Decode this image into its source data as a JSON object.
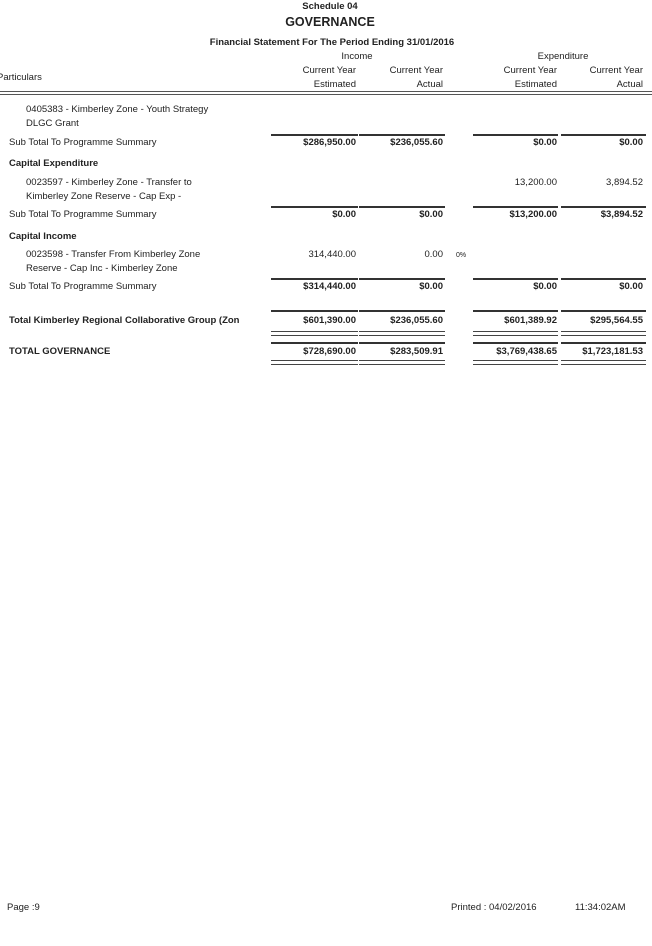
{
  "header": {
    "schedule": "Schedule 04",
    "title": "GOVERNANCE",
    "subtitle": "Financial Statement For The Period Ending 31/01/2016",
    "income": "Income",
    "expenditure": "Expenditure",
    "particulars": "Particulars",
    "cols": [
      [
        "Current Year",
        "Estimated"
      ],
      [
        "Current Year",
        "Actual"
      ],
      [
        "Current Year",
        "Estimated"
      ],
      [
        "Current Year",
        "Actual"
      ]
    ]
  },
  "rows": {
    "item1": {
      "lines": [
        "0405383 - Kimberley Zone - Youth Strategy",
        "DLGC Grant"
      ]
    },
    "sub1": {
      "label": "Sub Total To Programme Summary",
      "values": [
        "$286,950.00",
        "$236,055.60",
        "$0.00",
        "$0.00"
      ]
    },
    "sec2": "Capital Expenditure",
    "item2": {
      "lines": [
        "0023597 - Kimberley Zone - Transfer to",
        "Kimberley Zone Reserve -  Cap Exp -"
      ],
      "values": [
        "13,200.00",
        "3,894.52"
      ]
    },
    "sub2": {
      "label": "Sub Total To Programme Summary",
      "values": [
        "$0.00",
        "$0.00",
        "$13,200.00",
        "$3,894.52"
      ]
    },
    "sec3": "Capital Income",
    "item3": {
      "lines": [
        "0023598 - Transfer From Kimberley Zone",
        "Reserve - Cap Inc - Kimberley Zone"
      ],
      "values": [
        "314,440.00",
        "0.00"
      ],
      "pct": "0%"
    },
    "sub3": {
      "label": "Sub Total To Programme Summary",
      "values": [
        "$314,440.00",
        "$0.00",
        "$0.00",
        "$0.00"
      ]
    },
    "total1": {
      "label": "Total Kimberley Regional Collaborative Group (Zon",
      "values": [
        "$601,390.00",
        "$236,055.60",
        "$601,389.92",
        "$295,564.55"
      ]
    },
    "total2": {
      "label": "TOTAL GOVERNANCE",
      "values": [
        "$728,690.00",
        "$283,509.91",
        "$3,769,438.65",
        "$1,723,181.53"
      ]
    }
  },
  "footer": {
    "page": "Page :9",
    "printed": "Printed : 04/02/2016",
    "time": "11:34:02AM"
  }
}
